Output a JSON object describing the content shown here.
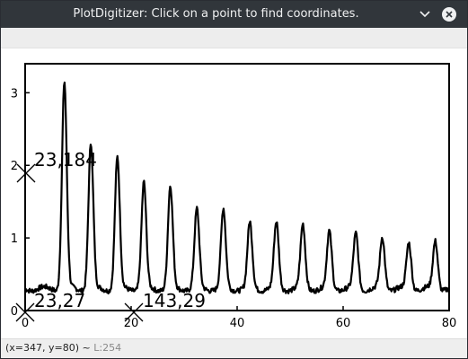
{
  "window": {
    "title": "PlotDigitizer: Click on a point to find coordinates.",
    "minimize_icon": "chevron-down-icon",
    "close_icon": "close-icon",
    "accent": "#31363b"
  },
  "status": {
    "coords": "(x=347, y=80)",
    "separator": "~",
    "level": "L:254"
  },
  "markers": [
    {
      "label": "23,184"
    },
    {
      "label": "23,27"
    },
    {
      "label": "143,29"
    }
  ],
  "chart_data": {
    "type": "line",
    "title": "",
    "xlabel": "",
    "ylabel": "",
    "xlim": [
      0,
      80
    ],
    "ylim": [
      0,
      3.4
    ],
    "x_ticks": [
      "0",
      "20",
      "40",
      "60",
      "80"
    ],
    "y_ticks": [
      "0",
      "1",
      "2",
      "3"
    ],
    "grid": false,
    "baseline": 0.3,
    "peaks": [
      {
        "x": 7.4,
        "y": 3.15
      },
      {
        "x": 12.4,
        "y": 2.3
      },
      {
        "x": 17.4,
        "y": 2.1
      },
      {
        "x": 22.4,
        "y": 1.75
      },
      {
        "x": 27.4,
        "y": 1.7
      },
      {
        "x": 32.4,
        "y": 1.38
      },
      {
        "x": 37.4,
        "y": 1.38
      },
      {
        "x": 42.4,
        "y": 1.2
      },
      {
        "x": 47.4,
        "y": 1.2
      },
      {
        "x": 52.4,
        "y": 1.17
      },
      {
        "x": 57.4,
        "y": 1.08
      },
      {
        "x": 62.4,
        "y": 1.05
      },
      {
        "x": 67.4,
        "y": 1.0
      },
      {
        "x": 72.4,
        "y": 0.93
      },
      {
        "x": 77.4,
        "y": 0.96
      }
    ]
  }
}
